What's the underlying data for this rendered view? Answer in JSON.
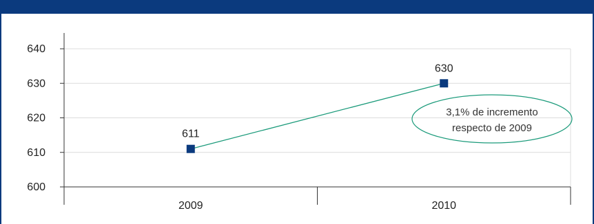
{
  "chart_data": {
    "type": "line",
    "categories": [
      "2009",
      "2010"
    ],
    "series": [
      {
        "values": [
          611,
          630
        ],
        "data_labels": [
          "611",
          "630"
        ]
      }
    ],
    "ylim": [
      600,
      640
    ],
    "y_ticks": [
      600,
      610,
      620,
      630,
      640
    ],
    "y_tick_labels": [
      "600",
      "610",
      "620",
      "630",
      "640"
    ],
    "grid": true,
    "annotation": {
      "lines": [
        "3,1% de incremento",
        "respecto de 2009"
      ]
    },
    "colors": {
      "line": "#1a9a7a",
      "marker": "#0b3a7e",
      "annotation_border": "#1a9a7a",
      "header": "#0b3a7e"
    }
  }
}
